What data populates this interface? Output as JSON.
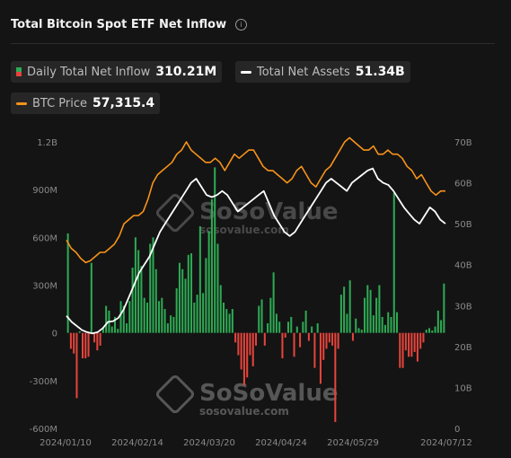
{
  "header": {
    "title": "Total Bitcoin Spot ETF Net Inflow",
    "info_icon": "info-circle-icon"
  },
  "legend": {
    "inflow": {
      "label": "Daily Total Net Inflow",
      "value": "310.21M"
    },
    "assets": {
      "label": "Total Net Assets",
      "value": "51.34B"
    },
    "price": {
      "label": "BTC Price",
      "value": "57,315.4"
    }
  },
  "colors": {
    "positive": "#2eaa54",
    "negative": "#e5443c",
    "assets_line": "#ffffff",
    "price_line": "#f7931a"
  },
  "watermark": {
    "brand": "SoSoValue",
    "site": "sosovalue.com"
  },
  "chart_data": {
    "type": "bar+line",
    "title": "Total Bitcoin Spot ETF Net Inflow",
    "x_ticks": [
      "2024/01/10",
      "2024/02/14",
      "2024/03/20",
      "2024/04/24",
      "2024/05/29",
      "2024/07/12"
    ],
    "left_axis": {
      "ticks": [
        "1.2B",
        "900M",
        "600M",
        "300M",
        "0",
        "-300M",
        "-600M"
      ],
      "ylim": [
        -600,
        1200
      ],
      "unit": "M USD"
    },
    "right_axis": {
      "ticks": [
        "70B",
        "60B",
        "50B",
        "40B",
        "30B",
        "20B",
        "10B",
        "0"
      ],
      "ylim": [
        0,
        70
      ],
      "unit": "B USD"
    },
    "series": [
      {
        "name": "Daily Total Net Inflow",
        "kind": "bar",
        "axis": "left",
        "values": [
          625,
          -100,
          -130,
          -410,
          10,
          -160,
          -160,
          -150,
          440,
          -60,
          -110,
          -80,
          30,
          170,
          140,
          40,
          100,
          25,
          200,
          170,
          60,
          200,
          410,
          600,
          520,
          420,
          220,
          190,
          560,
          600,
          400,
          200,
          220,
          150,
          60,
          110,
          100,
          280,
          440,
          400,
          340,
          490,
          500,
          190,
          240,
          670,
          250,
          470,
          640,
          840,
          1040,
          560,
          300,
          190,
          150,
          120,
          150,
          -60,
          -140,
          -230,
          -330,
          -280,
          -140,
          -210,
          -80,
          170,
          210,
          -80,
          60,
          220,
          380,
          120,
          70,
          -160,
          -30,
          70,
          100,
          -150,
          40,
          -90,
          70,
          140,
          -50,
          40,
          -220,
          60,
          -320,
          -170,
          -100,
          -60,
          -80,
          -560,
          -100,
          240,
          290,
          120,
          330,
          -50,
          90,
          30,
          20,
          220,
          300,
          270,
          110,
          220,
          300,
          100,
          50,
          130,
          100,
          880,
          130,
          -220,
          -220,
          -110,
          -150,
          -150,
          -120,
          -180,
          -100,
          -60,
          20,
          30,
          15,
          40,
          140,
          80,
          310
        ]
      },
      {
        "name": "Total Net Assets",
        "kind": "line",
        "axis": "right",
        "values": [
          27.5,
          26,
          25,
          24,
          23.5,
          23.2,
          23.5,
          24.5,
          26,
          26.2,
          27,
          29,
          32,
          35,
          38,
          40,
          42,
          45,
          48,
          50,
          52,
          54,
          56,
          58,
          60,
          61,
          59,
          57,
          56.5,
          57,
          58,
          57,
          55,
          53,
          54,
          55,
          56,
          57,
          58,
          55,
          52,
          50,
          48,
          47,
          48,
          50,
          52,
          54,
          56,
          58,
          60,
          61,
          60,
          59,
          58,
          60,
          61,
          62,
          63,
          63.5,
          61,
          60,
          59.5,
          58,
          56,
          54,
          52.5,
          51,
          50,
          52,
          54,
          53,
          51,
          50
        ]
      },
      {
        "name": "BTC Price",
        "kind": "line",
        "axis": "right",
        "values": [
          46,
          44,
          43,
          41.5,
          40.5,
          41,
          42,
          43,
          43,
          44,
          45,
          47,
          50,
          51,
          52,
          52,
          53,
          56,
          60,
          62,
          63,
          64,
          65,
          67,
          68,
          70,
          68,
          67,
          66,
          65,
          65,
          66,
          65,
          63,
          65,
          67,
          66,
          67,
          68,
          68,
          66,
          64,
          63,
          63,
          62,
          61,
          60,
          61,
          63,
          64,
          62,
          60,
          59,
          61,
          63,
          64,
          66,
          68,
          70,
          71,
          70,
          69,
          68,
          68,
          69,
          67,
          67,
          68,
          67,
          67,
          66,
          64,
          63,
          61,
          62,
          60,
          58,
          57,
          58,
          58
        ]
      }
    ]
  }
}
